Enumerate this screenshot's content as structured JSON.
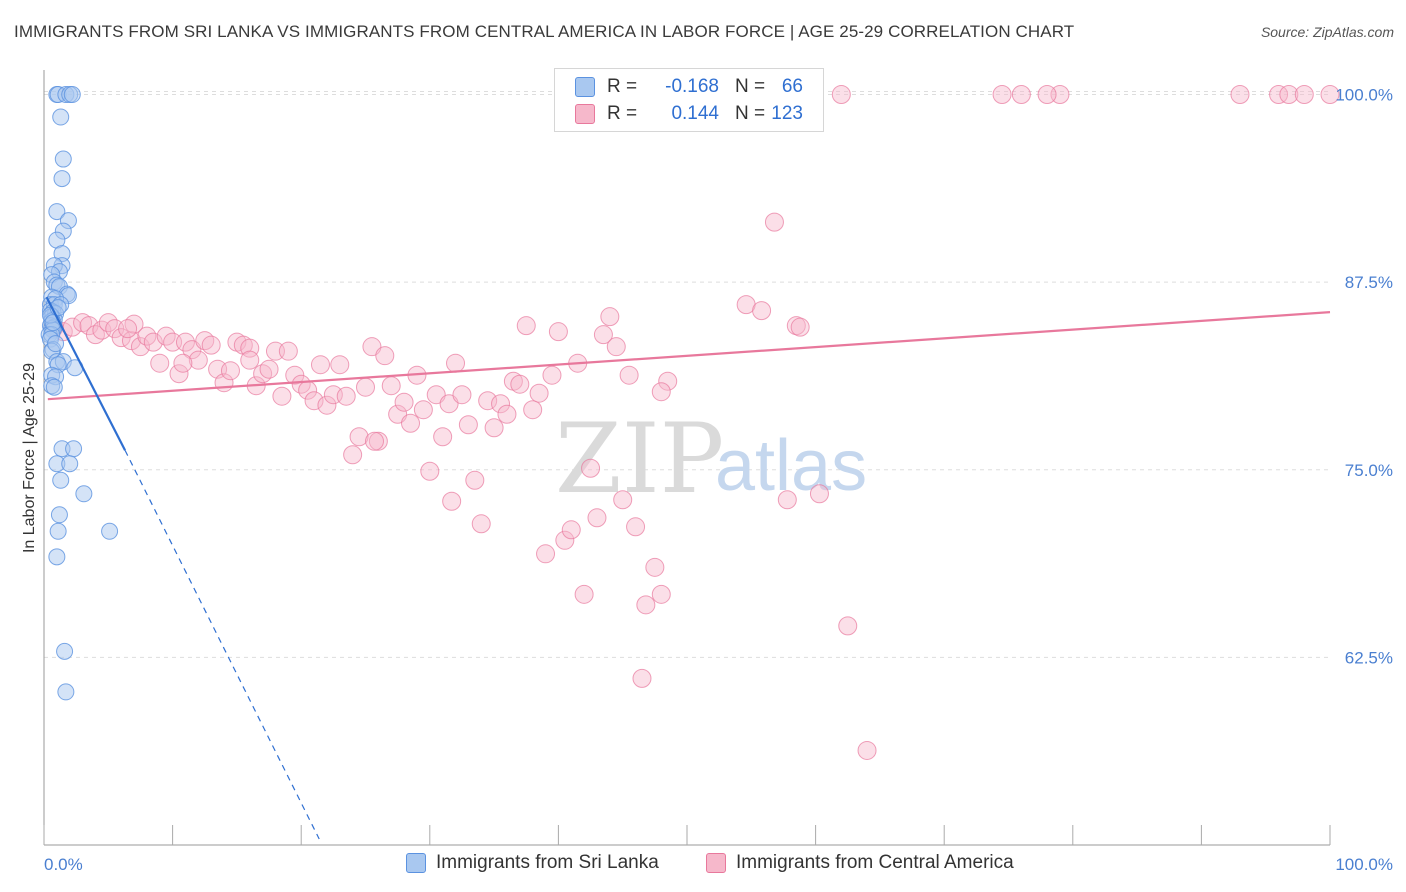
{
  "header": {
    "title": "IMMIGRANTS FROM SRI LANKA VS IMMIGRANTS FROM CENTRAL AMERICA IN LABOR FORCE | AGE 25-29 CORRELATION CHART",
    "source": "Source: ZipAtlas.com"
  },
  "watermark": {
    "zip": "ZIP",
    "atlas": "atlas"
  },
  "legend": {
    "r_label": "R =",
    "n_label": "N =",
    "series1": {
      "r": "-0.168",
      "n": "66",
      "color": "#a9c8f0",
      "stroke": "#5b92e0"
    },
    "series2": {
      "r": "0.144",
      "n": "123",
      "color": "#f6b8cb",
      "stroke": "#e8789c"
    }
  },
  "bottom_legend": {
    "series1_label": "Immigrants from Sri Lanka",
    "series2_label": "Immigrants from Central America"
  },
  "chart_data": {
    "type": "scatter",
    "title": "IMMIGRANTS FROM SRI LANKA VS IMMIGRANTS FROM CENTRAL AMERICA IN LABOR FORCE | AGE 25-29 CORRELATION CHART",
    "xlabel": "",
    "ylabel": "In Labor Force | Age 25-29",
    "x_tick_labels": [
      "0.0%",
      "100.0%"
    ],
    "y_tick_labels": [
      "100.0%",
      "87.5%",
      "75.0%",
      "62.5%"
    ],
    "y_ticks": [
      100.0,
      87.5,
      75.0,
      62.5
    ],
    "xlim": [
      0,
      100
    ],
    "ylim": [
      50.0,
      101.5
    ],
    "grid": true,
    "series": [
      {
        "name": "Immigrants from Sri Lanka",
        "color": "#5b92e0",
        "fill": "#a9c8f0",
        "trend": {
          "x0": 0.2,
          "y0": 86.5,
          "x1": 6.3,
          "y1": 76.3,
          "dash_to_x": 21.4,
          "dash_to_y": 50.4
        },
        "points": [
          [
            1.0,
            100.0
          ],
          [
            1.1,
            100.0
          ],
          [
            1.7,
            100.0
          ],
          [
            2.0,
            100.0
          ],
          [
            2.2,
            100.0
          ],
          [
            1.3,
            98.5
          ],
          [
            1.5,
            95.7
          ],
          [
            1.4,
            94.4
          ],
          [
            1.0,
            92.2
          ],
          [
            1.9,
            91.6
          ],
          [
            1.5,
            90.9
          ],
          [
            1.0,
            90.3
          ],
          [
            1.4,
            89.4
          ],
          [
            1.4,
            88.6
          ],
          [
            0.8,
            88.6
          ],
          [
            1.2,
            88.2
          ],
          [
            0.6,
            88.0
          ],
          [
            0.8,
            87.5
          ],
          [
            1.0,
            87.3
          ],
          [
            1.2,
            87.2
          ],
          [
            1.8,
            86.7
          ],
          [
            1.9,
            86.6
          ],
          [
            0.6,
            86.5
          ],
          [
            0.9,
            86.4
          ],
          [
            0.5,
            86.0
          ],
          [
            0.8,
            86.0
          ],
          [
            1.3,
            86.0
          ],
          [
            0.5,
            85.6
          ],
          [
            0.7,
            85.5
          ],
          [
            0.9,
            85.4
          ],
          [
            0.6,
            85.2
          ],
          [
            0.8,
            85.0
          ],
          [
            0.6,
            84.9
          ],
          [
            0.5,
            84.6
          ],
          [
            0.8,
            84.5
          ],
          [
            0.6,
            84.4
          ],
          [
            0.7,
            84.3
          ],
          [
            0.4,
            84.0
          ],
          [
            0.6,
            84.0
          ],
          [
            0.5,
            83.7
          ],
          [
            0.7,
            83.0
          ],
          [
            0.6,
            82.9
          ],
          [
            1.0,
            82.2
          ],
          [
            1.5,
            82.2
          ],
          [
            1.1,
            82.0
          ],
          [
            2.4,
            81.8
          ],
          [
            0.6,
            81.3
          ],
          [
            0.9,
            81.2
          ],
          [
            0.6,
            80.6
          ],
          [
            0.8,
            80.5
          ],
          [
            1.4,
            76.4
          ],
          [
            2.3,
            76.4
          ],
          [
            1.0,
            75.4
          ],
          [
            2.0,
            75.4
          ],
          [
            1.3,
            74.3
          ],
          [
            3.1,
            73.4
          ],
          [
            1.2,
            72.0
          ],
          [
            1.1,
            70.9
          ],
          [
            5.1,
            70.9
          ],
          [
            1.0,
            69.2
          ],
          [
            1.6,
            62.9
          ],
          [
            1.7,
            60.2
          ],
          [
            0.5,
            85.3
          ],
          [
            0.7,
            84.8
          ],
          [
            1.1,
            85.8
          ],
          [
            0.9,
            83.4
          ]
        ]
      },
      {
        "name": "Immigrants from Central America",
        "color": "#e8789c",
        "fill": "#f6b8cb",
        "trend": {
          "x0": 0.3,
          "y0": 79.7,
          "x1": 100.0,
          "y1": 85.5
        },
        "points": [
          [
            57.5,
            100.0
          ],
          [
            59.0,
            100.0
          ],
          [
            62.0,
            100.0
          ],
          [
            74.5,
            100.0
          ],
          [
            76.0,
            100.0
          ],
          [
            79.0,
            100.0
          ],
          [
            93.0,
            100.0
          ],
          [
            96.0,
            100.0
          ],
          [
            96.8,
            100.0
          ],
          [
            98.0,
            100.0
          ],
          [
            100.0,
            100.0
          ],
          [
            78.0,
            100.0
          ],
          [
            56.8,
            91.5
          ],
          [
            54.6,
            86.0
          ],
          [
            55.8,
            85.6
          ],
          [
            58.5,
            84.6
          ],
          [
            0.8,
            84.5
          ],
          [
            1.5,
            84.2
          ],
          [
            2.2,
            84.5
          ],
          [
            3.0,
            84.8
          ],
          [
            3.5,
            84.6
          ],
          [
            4.0,
            84.0
          ],
          [
            4.5,
            84.3
          ],
          [
            5.0,
            84.8
          ],
          [
            5.5,
            84.4
          ],
          [
            6.0,
            83.8
          ],
          [
            6.8,
            83.6
          ],
          [
            7.0,
            84.7
          ],
          [
            7.5,
            83.2
          ],
          [
            8.0,
            83.9
          ],
          [
            8.5,
            83.5
          ],
          [
            9.0,
            82.1
          ],
          [
            9.5,
            83.9
          ],
          [
            10.0,
            83.5
          ],
          [
            10.5,
            81.4
          ],
          [
            11.0,
            83.5
          ],
          [
            11.5,
            83.0
          ],
          [
            12.0,
            82.3
          ],
          [
            12.5,
            83.6
          ],
          [
            13.0,
            83.3
          ],
          [
            13.5,
            81.7
          ],
          [
            14.0,
            80.8
          ],
          [
            14.5,
            81.6
          ],
          [
            15.0,
            83.5
          ],
          [
            15.5,
            83.3
          ],
          [
            16.0,
            83.1
          ],
          [
            16.5,
            80.6
          ],
          [
            17.0,
            81.4
          ],
          [
            17.5,
            81.7
          ],
          [
            18.0,
            82.9
          ],
          [
            18.5,
            79.9
          ],
          [
            19.0,
            82.9
          ],
          [
            19.5,
            81.3
          ],
          [
            20.0,
            80.7
          ],
          [
            20.5,
            80.3
          ],
          [
            21.0,
            79.6
          ],
          [
            21.5,
            82.0
          ],
          [
            22.0,
            79.3
          ],
          [
            22.5,
            80.0
          ],
          [
            23.0,
            82.0
          ],
          [
            23.5,
            79.9
          ],
          [
            24.0,
            76.0
          ],
          [
            24.5,
            77.2
          ],
          [
            25.0,
            80.5
          ],
          [
            25.5,
            83.2
          ],
          [
            26.0,
            76.9
          ],
          [
            26.5,
            82.6
          ],
          [
            27.0,
            80.6
          ],
          [
            27.5,
            78.7
          ],
          [
            28.0,
            79.5
          ],
          [
            28.5,
            78.1
          ],
          [
            29.0,
            81.3
          ],
          [
            29.5,
            79.0
          ],
          [
            30.0,
            74.9
          ],
          [
            30.5,
            80.0
          ],
          [
            31.0,
            77.2
          ],
          [
            31.5,
            79.4
          ],
          [
            32.0,
            82.1
          ],
          [
            32.5,
            80.0
          ],
          [
            33.0,
            78.0
          ],
          [
            33.5,
            74.3
          ],
          [
            34.0,
            71.4
          ],
          [
            34.5,
            79.6
          ],
          [
            35.0,
            77.8
          ],
          [
            35.5,
            79.4
          ],
          [
            36.0,
            78.7
          ],
          [
            36.5,
            80.9
          ],
          [
            37.0,
            80.7
          ],
          [
            37.5,
            84.6
          ],
          [
            38.0,
            79.0
          ],
          [
            38.5,
            80.1
          ],
          [
            39.0,
            69.4
          ],
          [
            39.5,
            81.3
          ],
          [
            40.0,
            84.2
          ],
          [
            40.5,
            70.3
          ],
          [
            41.0,
            71.0
          ],
          [
            41.5,
            82.1
          ],
          [
            42.0,
            66.7
          ],
          [
            42.5,
            75.1
          ],
          [
            43.0,
            71.8
          ],
          [
            43.5,
            84.0
          ],
          [
            44.0,
            85.2
          ],
          [
            44.5,
            83.2
          ],
          [
            45.0,
            73.0
          ],
          [
            45.5,
            81.3
          ],
          [
            46.0,
            71.2
          ],
          [
            46.5,
            61.1
          ],
          [
            46.8,
            66.0
          ],
          [
            47.5,
            68.5
          ],
          [
            48.0,
            66.7
          ],
          [
            48.5,
            80.9
          ],
          [
            57.8,
            73.0
          ],
          [
            58.8,
            84.5
          ],
          [
            60.3,
            73.4
          ],
          [
            62.5,
            64.6
          ],
          [
            64.0,
            56.3
          ],
          [
            16.0,
            82.3
          ],
          [
            6.5,
            84.4
          ],
          [
            10.8,
            82.1
          ],
          [
            25.7,
            76.9
          ],
          [
            31.7,
            72.9
          ],
          [
            48.0,
            80.2
          ]
        ]
      }
    ]
  }
}
